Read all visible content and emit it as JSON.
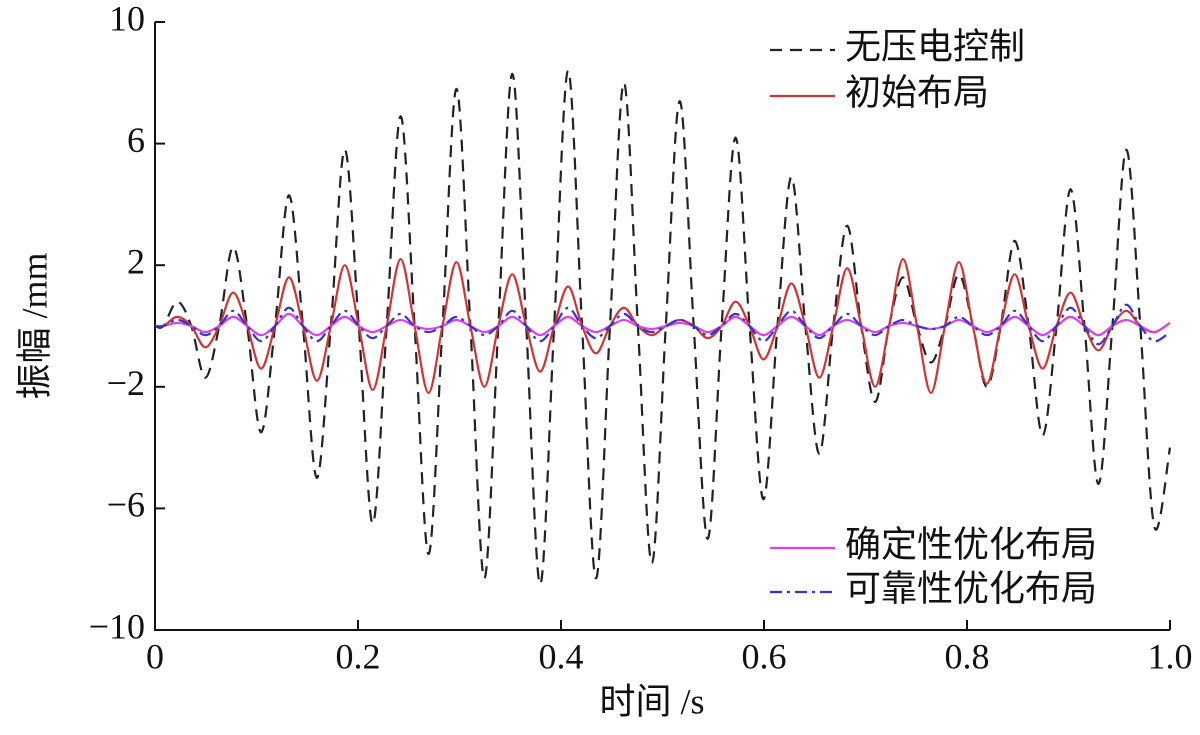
{
  "chart_data": {
    "type": "line",
    "xlabel": "时间 /s",
    "ylabel": "振幅 /mm",
    "x": [
      0,
      0.00825,
      0.022,
      0.03575,
      0.0495,
      0.06325,
      0.077,
      0.09075,
      0.1045,
      0.11825,
      0.132,
      0.14575,
      0.1595,
      0.17325,
      0.187,
      0.20075,
      0.2145,
      0.22825,
      0.242,
      0.25575,
      0.2695,
      0.28325,
      0.297,
      0.31075,
      0.3245,
      0.33825,
      0.352,
      0.36575,
      0.3795,
      0.39325,
      0.407,
      0.42075,
      0.4345,
      0.44825,
      0.462,
      0.47575,
      0.4895,
      0.50325,
      0.517,
      0.53075,
      0.5445,
      0.55825,
      0.572,
      0.58575,
      0.5995,
      0.61325,
      0.627,
      0.64075,
      0.6545,
      0.66825,
      0.682,
      0.69575,
      0.7095,
      0.72325,
      0.737,
      0.75075,
      0.7645,
      0.77825,
      0.792,
      0.80575,
      0.8195,
      0.83325,
      0.847,
      0.86075,
      0.8745,
      0.88825,
      0.902,
      0.91575,
      0.9295,
      0.94325,
      0.957,
      0.97075,
      0.9845,
      1.0
    ],
    "series": [
      {
        "name": "无压电控制",
        "color": "#222222",
        "dash": "12,8",
        "legend": "upper right",
        "values": [
          0,
          0,
          0.8,
          0,
          -1.7,
          0,
          2.6,
          0,
          -3.5,
          0,
          4.3,
          0,
          -5.0,
          0,
          5.8,
          0,
          -6.5,
          0,
          6.9,
          0,
          -7.5,
          0,
          7.8,
          0,
          -8.3,
          0,
          8.3,
          0,
          -8.5,
          0,
          8.4,
          0,
          -8.3,
          0,
          8.0,
          0,
          -7.8,
          0,
          7.4,
          0,
          -7.0,
          0,
          6.2,
          0,
          -5.7,
          0,
          4.9,
          0,
          -4.2,
          0,
          3.3,
          0,
          -2.5,
          0,
          1.6,
          0,
          -1.2,
          0,
          1.7,
          0,
          -2.0,
          0,
          2.8,
          0,
          -3.6,
          0,
          4.5,
          0,
          -5.2,
          0,
          5.8,
          0,
          -6.6,
          -4.0
        ]
      },
      {
        "name": "初始布局",
        "color": "#d03434",
        "dash": "none",
        "legend": "upper right",
        "values": [
          0,
          0,
          0.3,
          0,
          -0.7,
          0,
          1.1,
          0,
          -1.4,
          0,
          1.6,
          0,
          -1.8,
          0,
          2.0,
          0,
          -2.1,
          0,
          2.2,
          0,
          -2.2,
          0,
          2.1,
          0,
          -2.0,
          0,
          1.7,
          0,
          -1.5,
          0,
          1.3,
          0,
          -0.9,
          0,
          0.6,
          0,
          -0.3,
          0,
          0.2,
          0,
          -0.4,
          0,
          0.8,
          0,
          -1.1,
          0,
          1.4,
          0,
          -1.7,
          0,
          1.9,
          0,
          -2.0,
          0,
          2.2,
          0,
          -2.2,
          0,
          2.1,
          0,
          -1.9,
          0,
          1.7,
          0,
          -1.4,
          0,
          1.1,
          0,
          -0.8,
          0,
          0.5,
          0,
          -0.2,
          0.1
        ]
      },
      {
        "name": "确定性优化布局",
        "color": "#e040e0",
        "dash": "none",
        "legend": "lower right",
        "values": [
          0,
          0,
          0.1,
          0,
          -0.2,
          0,
          0.3,
          0,
          -0.3,
          0,
          0.4,
          0,
          -0.3,
          0,
          0.3,
          0,
          -0.2,
          0,
          0.2,
          0,
          -0.1,
          0,
          0.2,
          0,
          -0.2,
          0,
          0.3,
          0,
          -0.3,
          0,
          0.3,
          0,
          -0.2,
          0,
          0.2,
          0,
          -0.1,
          0,
          0.1,
          0,
          -0.2,
          0,
          0.3,
          0,
          -0.3,
          0,
          0.3,
          0,
          -0.3,
          0,
          0.2,
          0,
          -0.2,
          0,
          0.1,
          0,
          -0.1,
          0,
          0.2,
          0,
          -0.2,
          0,
          0.3,
          0,
          -0.3,
          0,
          0.3,
          0,
          -0.3,
          0,
          0.2,
          0,
          -0.2,
          0.1
        ]
      },
      {
        "name": "可靠性优化布局",
        "color": "#3434d0",
        "dash": "12,5,3,5",
        "legend": "lower right",
        "values": [
          0,
          0,
          0.2,
          0,
          -0.3,
          0,
          0.5,
          0,
          -0.5,
          0,
          0.6,
          0,
          -0.5,
          0,
          0.5,
          0,
          -0.4,
          0,
          0.4,
          0,
          -0.2,
          0,
          0.3,
          0,
          -0.3,
          0,
          0.5,
          0,
          -0.5,
          0,
          0.6,
          0,
          -0.4,
          0,
          0.4,
          0,
          -0.2,
          0,
          0.2,
          0,
          -0.3,
          0,
          0.4,
          0,
          -0.5,
          0,
          0.5,
          0,
          -0.4,
          0,
          0.4,
          0,
          -0.3,
          0,
          0.2,
          0,
          -0.1,
          0,
          0.3,
          0,
          -0.3,
          0,
          0.5,
          0,
          -0.5,
          0,
          0.6,
          0,
          -0.6,
          0,
          0.7,
          0,
          -0.5,
          -0.2
        ]
      }
    ],
    "xlim": [
      0,
      1
    ],
    "xticks": [
      0,
      0.2,
      0.4,
      0.6,
      0.8,
      {
        "value": 1,
        "label": "1.0"
      }
    ],
    "ylim": [
      -10,
      10
    ],
    "yticks": [
      {
        "value": -10,
        "label": "−10"
      },
      {
        "value": -6,
        "label": "−6"
      },
      {
        "value": -2,
        "label": "−2"
      },
      2,
      6,
      10
    ],
    "grid": false
  }
}
